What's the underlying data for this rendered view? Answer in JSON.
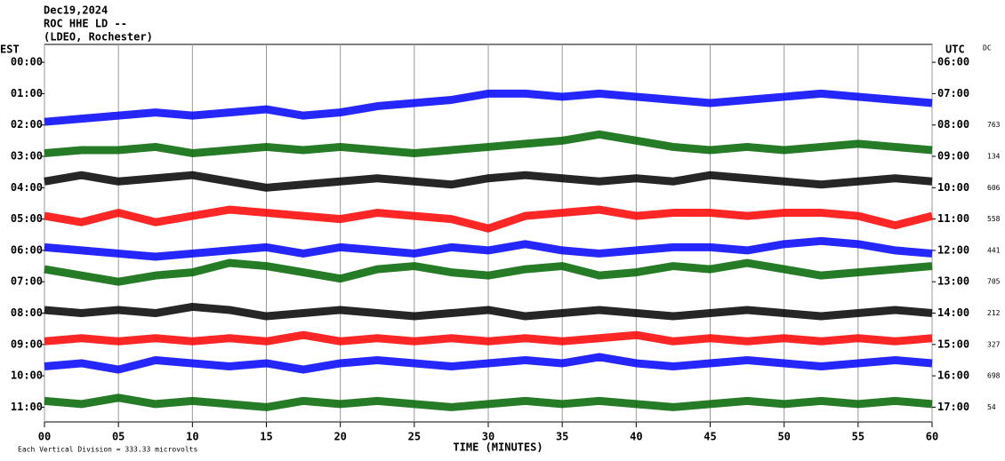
{
  "chart_data": {
    "type": "helicorder",
    "title_lines": [
      "Dec19,2024",
      "ROC HHE LD --",
      "(LDEO, Rochester)"
    ],
    "left_axis_title": "EST",
    "right_axis_title": "UTC",
    "dc_title": "DC",
    "x_axis_title": "TIME (MINUTES)",
    "footer": "Each Vertical Division = 333.33 microvolts",
    "est_labels": [
      "00:00",
      "01:00",
      "02:00",
      "03:00",
      "04:00",
      "05:00",
      "06:00",
      "07:00",
      "08:00",
      "09:00",
      "10:00",
      "11:00"
    ],
    "utc_labels": [
      "06:00",
      "07:00",
      "08:00",
      "09:00",
      "10:00",
      "11:00",
      "12:00",
      "13:00",
      "14:00",
      "15:00",
      "16:00",
      "17:00"
    ],
    "xlim": [
      0,
      60
    ],
    "xticks": [
      {
        "value": 0,
        "label": "00"
      },
      {
        "value": 5,
        "label": "05"
      },
      10,
      15,
      20,
      25,
      30,
      35,
      40,
      45,
      50,
      55,
      60
    ],
    "ylim": [
      -0.57,
      11.47
    ],
    "grid": true,
    "x": [
      0,
      2.5,
      5,
      7.5,
      10,
      12.5,
      15,
      17.5,
      20,
      22.5,
      25,
      27.5,
      30,
      32.5,
      35,
      37.5,
      40,
      42.5,
      45,
      47.5,
      50,
      52.5,
      55,
      57.5,
      60
    ],
    "series": [
      {
        "color": "#0000ff",
        "dc": 763,
        "values": [
          1.9,
          1.8,
          1.7,
          1.6,
          1.7,
          1.6,
          1.5,
          1.7,
          1.6,
          1.4,
          1.3,
          1.2,
          1.0,
          1.0,
          1.1,
          1.0,
          1.1,
          1.2,
          1.3,
          1.2,
          1.1,
          1.0,
          1.1,
          1.2,
          1.3
        ]
      },
      {
        "color": "#006400",
        "dc": 134,
        "values": [
          2.9,
          2.8,
          2.8,
          2.7,
          2.9,
          2.8,
          2.7,
          2.8,
          2.7,
          2.8,
          2.9,
          2.8,
          2.7,
          2.6,
          2.5,
          2.3,
          2.5,
          2.7,
          2.8,
          2.7,
          2.8,
          2.7,
          2.6,
          2.7,
          2.8
        ]
      },
      {
        "color": "#000000",
        "dc": 606,
        "values": [
          3.8,
          3.6,
          3.8,
          3.7,
          3.6,
          3.8,
          4.0,
          3.9,
          3.8,
          3.7,
          3.8,
          3.9,
          3.7,
          3.6,
          3.7,
          3.8,
          3.7,
          3.8,
          3.6,
          3.7,
          3.8,
          3.9,
          3.8,
          3.7,
          3.8
        ]
      },
      {
        "color": "#ff0000",
        "dc": 558,
        "values": [
          4.9,
          5.1,
          4.8,
          5.1,
          4.9,
          4.7,
          4.8,
          4.9,
          5.0,
          4.8,
          4.9,
          5.0,
          5.3,
          4.9,
          4.8,
          4.7,
          4.9,
          4.8,
          4.8,
          4.9,
          4.8,
          4.8,
          4.9,
          5.2,
          4.9
        ]
      },
      {
        "color": "#0000ff",
        "dc": 441,
        "values": [
          5.9,
          6.0,
          6.1,
          6.2,
          6.1,
          6.0,
          5.9,
          6.1,
          5.9,
          6.0,
          6.1,
          5.9,
          6.0,
          5.8,
          6.0,
          6.1,
          6.0,
          5.9,
          5.9,
          6.0,
          5.8,
          5.7,
          5.8,
          6.0,
          6.1
        ]
      },
      {
        "color": "#006400",
        "dc": 705,
        "values": [
          6.6,
          6.8,
          7.0,
          6.8,
          6.7,
          6.4,
          6.5,
          6.7,
          6.9,
          6.6,
          6.5,
          6.7,
          6.8,
          6.6,
          6.5,
          6.8,
          6.7,
          6.5,
          6.6,
          6.4,
          6.6,
          6.8,
          6.7,
          6.6,
          6.5
        ]
      },
      {
        "color": "#000000",
        "dc": 212,
        "values": [
          7.9,
          8.0,
          7.9,
          8.0,
          7.8,
          7.9,
          8.1,
          8.0,
          7.9,
          8.0,
          8.1,
          8.0,
          7.9,
          8.1,
          8.0,
          7.9,
          8.0,
          8.1,
          8.0,
          7.9,
          8.0,
          8.1,
          8.0,
          7.9,
          8.0
        ]
      },
      {
        "color": "#ff0000",
        "dc": 327,
        "values": [
          8.9,
          8.8,
          8.9,
          8.8,
          8.9,
          8.8,
          8.9,
          8.7,
          8.9,
          8.8,
          8.9,
          8.8,
          8.9,
          8.8,
          8.9,
          8.8,
          8.7,
          8.9,
          8.8,
          8.9,
          8.8,
          8.9,
          8.8,
          8.9,
          8.8
        ]
      },
      {
        "color": "#0000ff",
        "dc": 698,
        "values": [
          9.7,
          9.6,
          9.8,
          9.5,
          9.6,
          9.7,
          9.6,
          9.8,
          9.6,
          9.5,
          9.6,
          9.7,
          9.6,
          9.5,
          9.6,
          9.4,
          9.6,
          9.7,
          9.6,
          9.5,
          9.6,
          9.7,
          9.6,
          9.5,
          9.6
        ]
      },
      {
        "color": "#006400",
        "dc": 54,
        "values": [
          10.8,
          10.9,
          10.7,
          10.9,
          10.8,
          10.9,
          11.0,
          10.8,
          10.9,
          10.8,
          10.9,
          11.0,
          10.9,
          10.8,
          10.9,
          10.8,
          10.9,
          11.0,
          10.9,
          10.8,
          10.9,
          10.8,
          10.9,
          10.8,
          10.9
        ]
      }
    ]
  }
}
